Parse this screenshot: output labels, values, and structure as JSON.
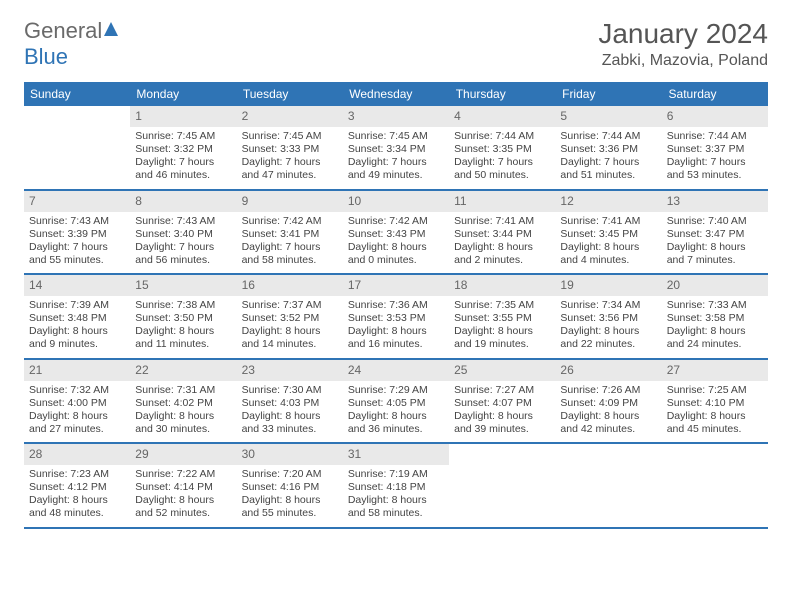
{
  "brand": {
    "part1": "General",
    "part2": "Blue"
  },
  "title": "January 2024",
  "location": "Zabki, Mazovia, Poland",
  "colors": {
    "header_bg": "#2f74b5",
    "header_text": "#ffffff",
    "daynum_bg": "#e9e9e9",
    "daynum_text": "#666666",
    "body_text": "#444444",
    "rule": "#2f74b5",
    "page_bg": "#ffffff"
  },
  "typography": {
    "title_fontsize": 28,
    "location_fontsize": 16,
    "weekday_fontsize": 12,
    "daynum_fontsize": 12,
    "body_fontsize": 10.5,
    "font_family": "Arial"
  },
  "layout": {
    "columns": 7,
    "rows": 5,
    "cell_min_height": 82
  },
  "weekdays": [
    "Sunday",
    "Monday",
    "Tuesday",
    "Wednesday",
    "Thursday",
    "Friday",
    "Saturday"
  ],
  "weeks": [
    [
      {
        "n": "",
        "sr": "",
        "ss": "",
        "dl": ""
      },
      {
        "n": "1",
        "sr": "Sunrise: 7:45 AM",
        "ss": "Sunset: 3:32 PM",
        "dl": "Daylight: 7 hours and 46 minutes."
      },
      {
        "n": "2",
        "sr": "Sunrise: 7:45 AM",
        "ss": "Sunset: 3:33 PM",
        "dl": "Daylight: 7 hours and 47 minutes."
      },
      {
        "n": "3",
        "sr": "Sunrise: 7:45 AM",
        "ss": "Sunset: 3:34 PM",
        "dl": "Daylight: 7 hours and 49 minutes."
      },
      {
        "n": "4",
        "sr": "Sunrise: 7:44 AM",
        "ss": "Sunset: 3:35 PM",
        "dl": "Daylight: 7 hours and 50 minutes."
      },
      {
        "n": "5",
        "sr": "Sunrise: 7:44 AM",
        "ss": "Sunset: 3:36 PM",
        "dl": "Daylight: 7 hours and 51 minutes."
      },
      {
        "n": "6",
        "sr": "Sunrise: 7:44 AM",
        "ss": "Sunset: 3:37 PM",
        "dl": "Daylight: 7 hours and 53 minutes."
      }
    ],
    [
      {
        "n": "7",
        "sr": "Sunrise: 7:43 AM",
        "ss": "Sunset: 3:39 PM",
        "dl": "Daylight: 7 hours and 55 minutes."
      },
      {
        "n": "8",
        "sr": "Sunrise: 7:43 AM",
        "ss": "Sunset: 3:40 PM",
        "dl": "Daylight: 7 hours and 56 minutes."
      },
      {
        "n": "9",
        "sr": "Sunrise: 7:42 AM",
        "ss": "Sunset: 3:41 PM",
        "dl": "Daylight: 7 hours and 58 minutes."
      },
      {
        "n": "10",
        "sr": "Sunrise: 7:42 AM",
        "ss": "Sunset: 3:43 PM",
        "dl": "Daylight: 8 hours and 0 minutes."
      },
      {
        "n": "11",
        "sr": "Sunrise: 7:41 AM",
        "ss": "Sunset: 3:44 PM",
        "dl": "Daylight: 8 hours and 2 minutes."
      },
      {
        "n": "12",
        "sr": "Sunrise: 7:41 AM",
        "ss": "Sunset: 3:45 PM",
        "dl": "Daylight: 8 hours and 4 minutes."
      },
      {
        "n": "13",
        "sr": "Sunrise: 7:40 AM",
        "ss": "Sunset: 3:47 PM",
        "dl": "Daylight: 8 hours and 7 minutes."
      }
    ],
    [
      {
        "n": "14",
        "sr": "Sunrise: 7:39 AM",
        "ss": "Sunset: 3:48 PM",
        "dl": "Daylight: 8 hours and 9 minutes."
      },
      {
        "n": "15",
        "sr": "Sunrise: 7:38 AM",
        "ss": "Sunset: 3:50 PM",
        "dl": "Daylight: 8 hours and 11 minutes."
      },
      {
        "n": "16",
        "sr": "Sunrise: 7:37 AM",
        "ss": "Sunset: 3:52 PM",
        "dl": "Daylight: 8 hours and 14 minutes."
      },
      {
        "n": "17",
        "sr": "Sunrise: 7:36 AM",
        "ss": "Sunset: 3:53 PM",
        "dl": "Daylight: 8 hours and 16 minutes."
      },
      {
        "n": "18",
        "sr": "Sunrise: 7:35 AM",
        "ss": "Sunset: 3:55 PM",
        "dl": "Daylight: 8 hours and 19 minutes."
      },
      {
        "n": "19",
        "sr": "Sunrise: 7:34 AM",
        "ss": "Sunset: 3:56 PM",
        "dl": "Daylight: 8 hours and 22 minutes."
      },
      {
        "n": "20",
        "sr": "Sunrise: 7:33 AM",
        "ss": "Sunset: 3:58 PM",
        "dl": "Daylight: 8 hours and 24 minutes."
      }
    ],
    [
      {
        "n": "21",
        "sr": "Sunrise: 7:32 AM",
        "ss": "Sunset: 4:00 PM",
        "dl": "Daylight: 8 hours and 27 minutes."
      },
      {
        "n": "22",
        "sr": "Sunrise: 7:31 AM",
        "ss": "Sunset: 4:02 PM",
        "dl": "Daylight: 8 hours and 30 minutes."
      },
      {
        "n": "23",
        "sr": "Sunrise: 7:30 AM",
        "ss": "Sunset: 4:03 PM",
        "dl": "Daylight: 8 hours and 33 minutes."
      },
      {
        "n": "24",
        "sr": "Sunrise: 7:29 AM",
        "ss": "Sunset: 4:05 PM",
        "dl": "Daylight: 8 hours and 36 minutes."
      },
      {
        "n": "25",
        "sr": "Sunrise: 7:27 AM",
        "ss": "Sunset: 4:07 PM",
        "dl": "Daylight: 8 hours and 39 minutes."
      },
      {
        "n": "26",
        "sr": "Sunrise: 7:26 AM",
        "ss": "Sunset: 4:09 PM",
        "dl": "Daylight: 8 hours and 42 minutes."
      },
      {
        "n": "27",
        "sr": "Sunrise: 7:25 AM",
        "ss": "Sunset: 4:10 PM",
        "dl": "Daylight: 8 hours and 45 minutes."
      }
    ],
    [
      {
        "n": "28",
        "sr": "Sunrise: 7:23 AM",
        "ss": "Sunset: 4:12 PM",
        "dl": "Daylight: 8 hours and 48 minutes."
      },
      {
        "n": "29",
        "sr": "Sunrise: 7:22 AM",
        "ss": "Sunset: 4:14 PM",
        "dl": "Daylight: 8 hours and 52 minutes."
      },
      {
        "n": "30",
        "sr": "Sunrise: 7:20 AM",
        "ss": "Sunset: 4:16 PM",
        "dl": "Daylight: 8 hours and 55 minutes."
      },
      {
        "n": "31",
        "sr": "Sunrise: 7:19 AM",
        "ss": "Sunset: 4:18 PM",
        "dl": "Daylight: 8 hours and 58 minutes."
      },
      {
        "n": "",
        "sr": "",
        "ss": "",
        "dl": ""
      },
      {
        "n": "",
        "sr": "",
        "ss": "",
        "dl": ""
      },
      {
        "n": "",
        "sr": "",
        "ss": "",
        "dl": ""
      }
    ]
  ]
}
